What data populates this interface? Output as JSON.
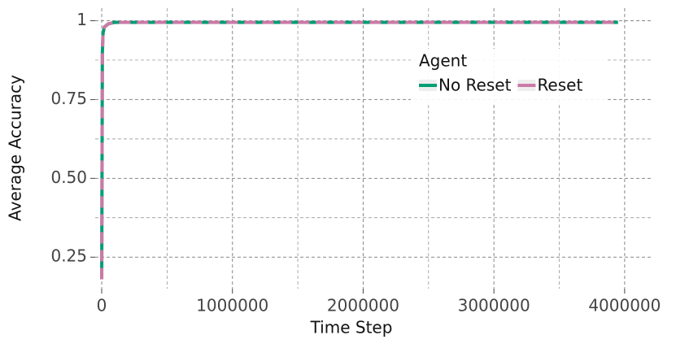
{
  "chart_data": {
    "type": "line",
    "xlabel": "Time Step",
    "ylabel": "Average Accuracy",
    "x": [
      0,
      5000,
      10000,
      20000,
      50000,
      100000,
      500000,
      1000000,
      2000000,
      3000000,
      3950000
    ],
    "series": [
      {
        "name": "No Reset",
        "color": "#009e73",
        "style": "solid",
        "values": [
          0.18,
          0.9,
          0.96,
          0.98,
          0.99,
          0.995,
          0.995,
          0.995,
          0.995,
          0.995,
          0.995
        ]
      },
      {
        "name": "Reset",
        "color": "#cc79a7",
        "style": "dashed",
        "values": [
          0.18,
          0.9,
          0.96,
          0.98,
          0.99,
          0.995,
          0.995,
          0.995,
          0.995,
          0.995,
          0.995
        ]
      }
    ],
    "xlim": [
      -50000,
      4200000
    ],
    "ylim": [
      0.15,
      1.04
    ],
    "xticks": [
      0,
      1000000,
      2000000,
      3000000,
      4000000
    ],
    "yticks": [
      {
        "value": 0.25,
        "label": "0.25"
      },
      {
        "value": 0.5,
        "label": "0.50"
      },
      0.75,
      1
    ],
    "x_minor_ticks": [
      500000,
      1500000,
      2500000,
      3500000
    ],
    "y_minor_ticks": [
      0.375,
      0.625,
      0.875
    ],
    "grid": true,
    "legend_title": "Agent",
    "legend_position": "upper right"
  }
}
